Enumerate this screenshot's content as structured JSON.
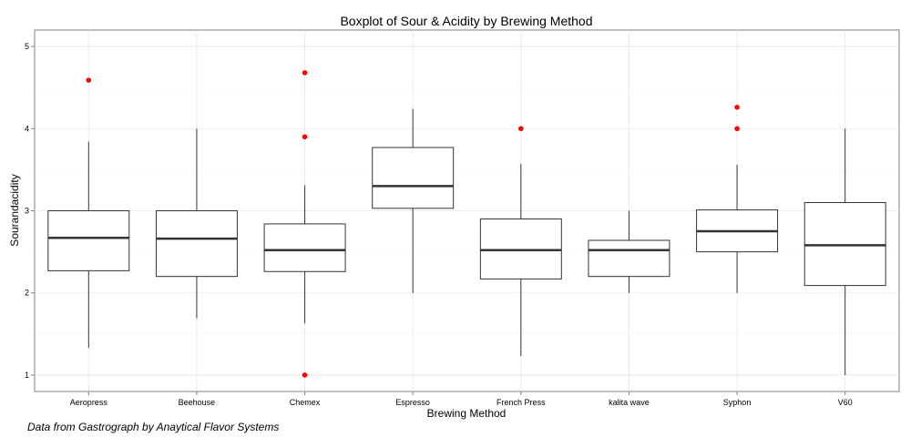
{
  "chart_data": {
    "type": "boxplot",
    "title": "Boxplot of Sour & Acidity by Brewing Method",
    "xlabel": "Brewing Method",
    "ylabel": "Sourandacidity",
    "ylim": [
      0.8,
      5.2
    ],
    "yticks": [
      1,
      2,
      3,
      4,
      5
    ],
    "grid": true,
    "outlier_color": "#ff0000",
    "categories": [
      "Aeropress",
      "Beehouse",
      "Chemex",
      "Espresso",
      "French Press",
      "kalita wave",
      "Syphon",
      "V60"
    ],
    "boxes": [
      {
        "min": 1.33,
        "q1": 2.27,
        "median": 2.67,
        "q3": 3.0,
        "max": 3.84,
        "outliers": [
          4.59
        ]
      },
      {
        "min": 1.69,
        "q1": 2.2,
        "median": 2.66,
        "q3": 3.0,
        "max": 4.0,
        "outliers": []
      },
      {
        "min": 1.63,
        "q1": 2.26,
        "median": 2.52,
        "q3": 2.84,
        "max": 3.31,
        "outliers": [
          4.68,
          3.9,
          1.0
        ]
      },
      {
        "min": 2.0,
        "q1": 3.03,
        "median": 3.3,
        "q3": 3.77,
        "max": 4.24,
        "outliers": []
      },
      {
        "min": 1.23,
        "q1": 2.17,
        "median": 2.52,
        "q3": 2.9,
        "max": 3.57,
        "outliers": [
          4.0
        ]
      },
      {
        "min": 2.0,
        "q1": 2.2,
        "median": 2.52,
        "q3": 2.64,
        "max": 3.0,
        "outliers": []
      },
      {
        "min": 2.0,
        "q1": 2.5,
        "median": 2.75,
        "q3": 3.01,
        "max": 3.56,
        "outliers": [
          4.26,
          4.0
        ]
      },
      {
        "min": 1.0,
        "q1": 2.09,
        "median": 2.58,
        "q3": 3.1,
        "max": 4.0,
        "outliers": []
      }
    ]
  },
  "caption": "Data from Gastrograph by Anaytical Flavor Systems"
}
